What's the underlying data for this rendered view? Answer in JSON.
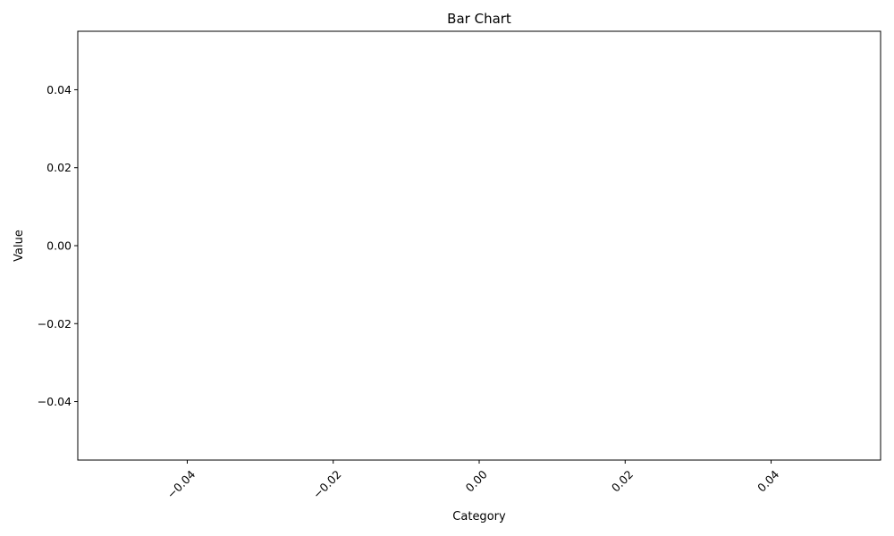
{
  "chart_data": {
    "type": "bar",
    "title": "Bar Chart",
    "xlabel": "Category",
    "ylabel": "Value",
    "categories": [],
    "values": [],
    "xlim": [
      -0.055,
      0.055
    ],
    "ylim": [
      -0.055,
      0.055
    ],
    "x_ticks": [
      -0.04,
      -0.02,
      0.0,
      0.02,
      0.04
    ],
    "x_tick_labels": [
      "−0.04",
      "−0.02",
      "0.00",
      "0.02",
      "0.04"
    ],
    "x_tick_rotation": 45,
    "y_ticks": [
      -0.04,
      -0.02,
      0.0,
      0.02,
      0.04
    ],
    "y_tick_labels": [
      "−0.04",
      "−0.02",
      "0.00",
      "0.02",
      "0.04"
    ],
    "grid": false,
    "legend": "none",
    "colors": {
      "background": "#ffffff",
      "axes": "#000000",
      "text": "#000000"
    }
  }
}
